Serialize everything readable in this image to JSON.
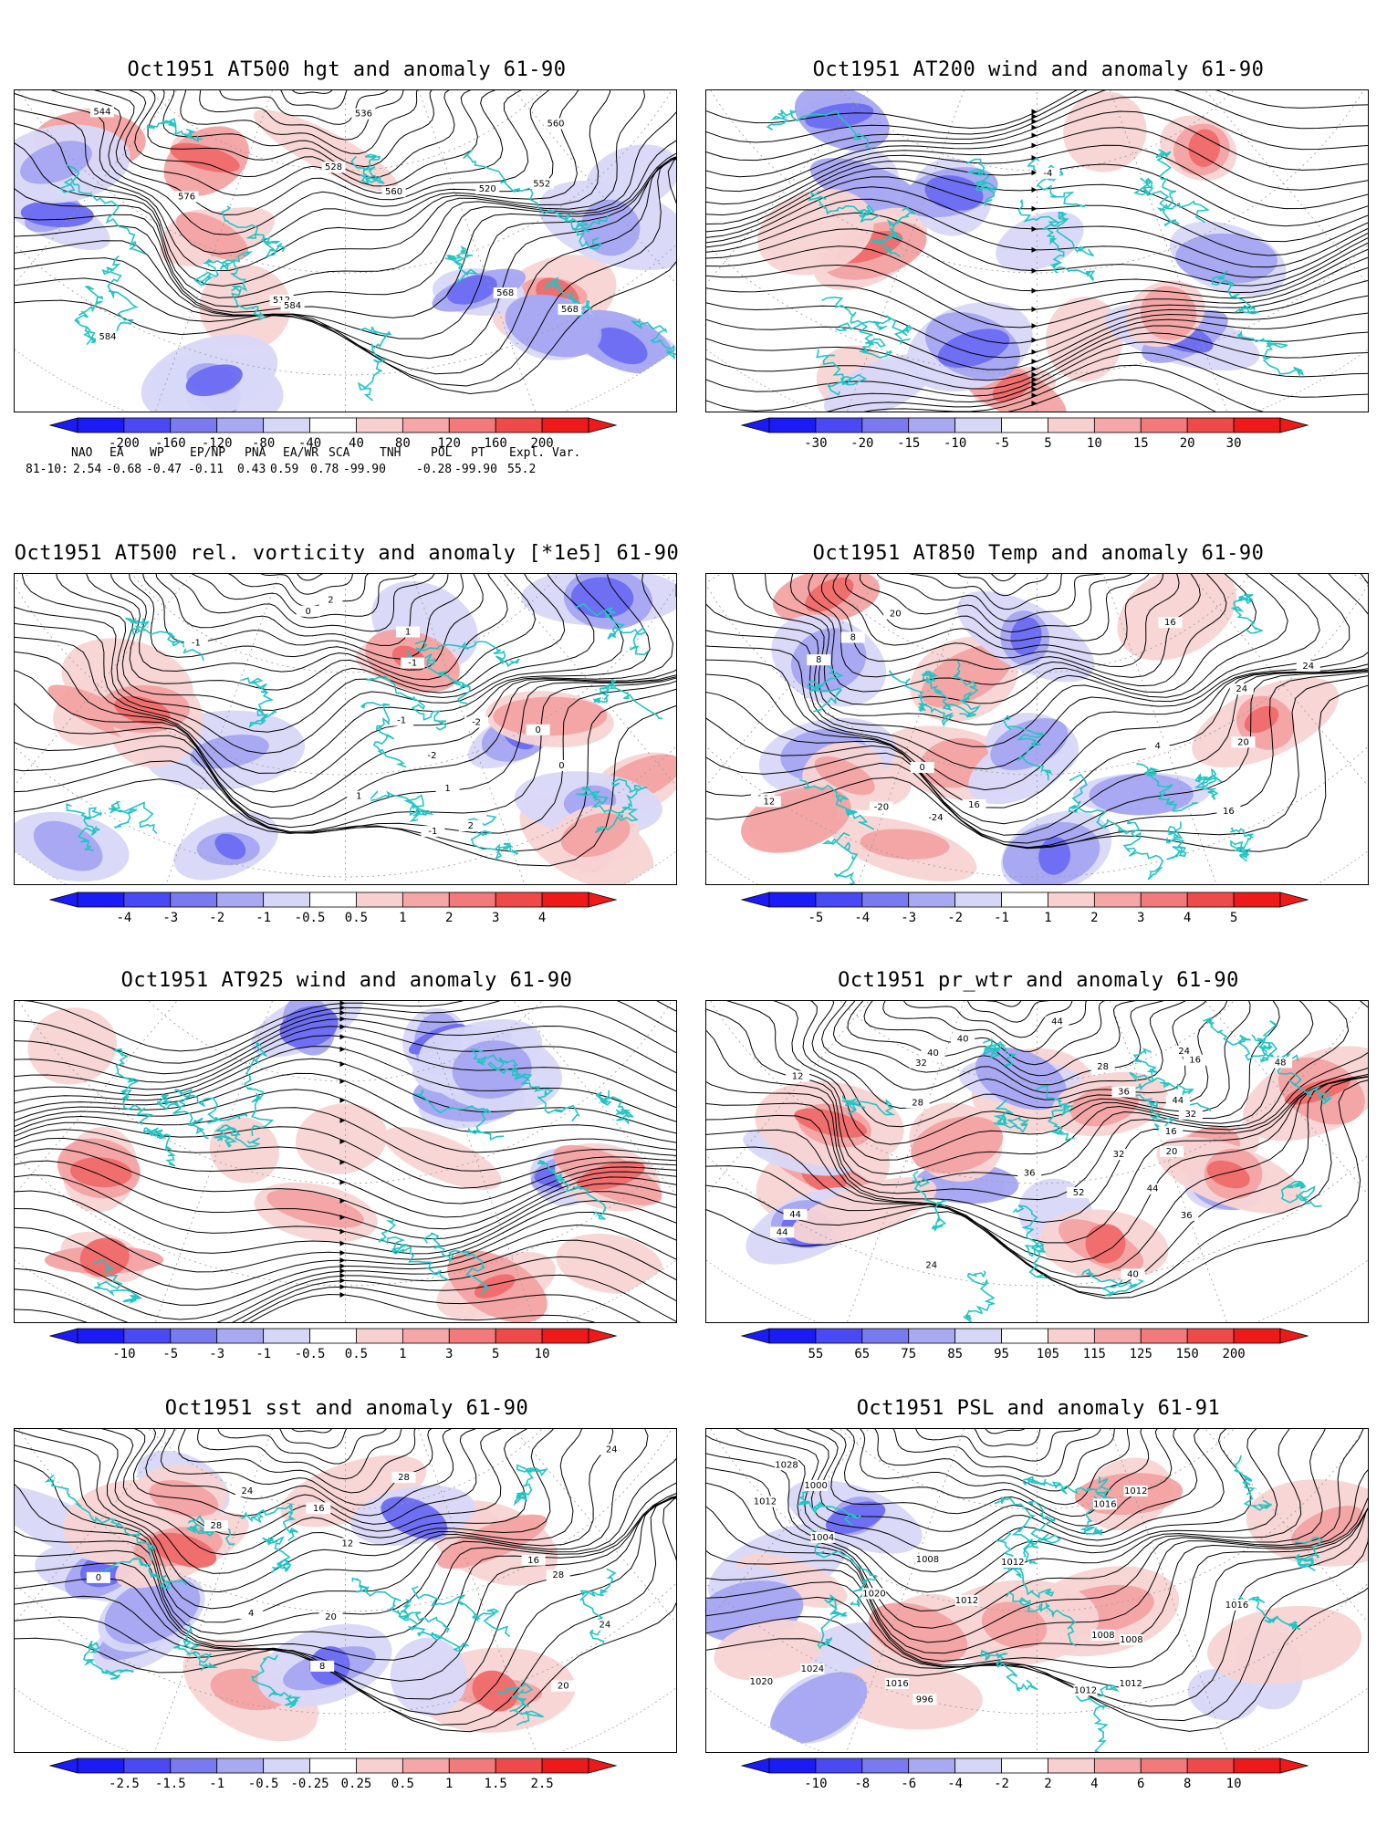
{
  "panels": [
    {
      "id": "p1",
      "title": "Oct1951 AT500 hgt and anomaly 61-90",
      "type": "contour",
      "colorbar": [
        "-200",
        "-160",
        "-120",
        "-80",
        "-40",
        "40",
        "80",
        "120",
        "160",
        "200"
      ],
      "contour_labels": [
        "512",
        "520",
        "528",
        "536",
        "544",
        "552",
        "560",
        "568",
        "560",
        "568",
        "576",
        "584",
        "584"
      ]
    },
    {
      "id": "p2",
      "title": "Oct1951 AT200 wind and anomaly 61-90",
      "type": "stream",
      "colorbar": [
        "-30",
        "-20",
        "-15",
        "-10",
        "-5",
        "5",
        "10",
        "15",
        "20",
        "30"
      ],
      "contour_labels": [
        "-4"
      ]
    },
    {
      "id": "p3",
      "title": "Oct1951 AT500 rel. vorticity and anomaly [*1e5] 61-90",
      "type": "contour",
      "colorbar": [
        "-4",
        "-3",
        "-2",
        "-1",
        "-0.5",
        "0.5",
        "1",
        "2",
        "3",
        "4"
      ],
      "contour_labels": [
        "0",
        "-1",
        "2",
        "-2",
        "1",
        "-1",
        "0",
        "-1",
        "1",
        "-2",
        "2",
        "0",
        "-1",
        "1"
      ]
    },
    {
      "id": "p4",
      "title": "Oct1951 AT850 Temp and anomaly 61-90",
      "type": "contour",
      "colorbar": [
        "-5",
        "-4",
        "-3",
        "-2",
        "-1",
        "1",
        "2",
        "3",
        "4",
        "5"
      ],
      "contour_labels": [
        "-20",
        "-24",
        "16",
        "8",
        "0",
        "4",
        "8",
        "24",
        "16",
        "12",
        "24",
        "20",
        "16",
        "16",
        "20"
      ]
    },
    {
      "id": "p5",
      "title": "Oct1951 AT925 wind and anomaly 61-90",
      "type": "stream",
      "colorbar": [
        "-10",
        "-5",
        "-3",
        "-1",
        "-0.5",
        "0.5",
        "1",
        "3",
        "5",
        "10"
      ],
      "contour_labels": []
    },
    {
      "id": "p6",
      "title": "Oct1951 pr_wtr and anomaly 61-90",
      "type": "contour",
      "colorbar": [
        "55",
        "65",
        "75",
        "85",
        "95",
        "105",
        "115",
        "125",
        "150",
        "200"
      ],
      "contour_labels": [
        "32",
        "28",
        "36",
        "44",
        "52",
        "40",
        "44",
        "12",
        "16",
        "24",
        "28",
        "32",
        "36",
        "24",
        "16",
        "20",
        "40",
        "44",
        "48",
        "44",
        "40",
        "32",
        "36",
        "44"
      ]
    },
    {
      "id": "p7",
      "title": "Oct1951 sst and anomaly 61-90",
      "type": "contour",
      "colorbar": [
        "-2.5",
        "-1.5",
        "-1",
        "-0.5",
        "-0.25",
        "0.25",
        "0.5",
        "1",
        "1.5",
        "2.5"
      ],
      "contour_labels": [
        "28",
        "24",
        "12",
        "8",
        "4",
        "0",
        "16",
        "12",
        "20",
        "24",
        "28",
        "28",
        "24",
        "20",
        "16"
      ]
    },
    {
      "id": "p8",
      "title": "Oct1951 PSL and anomaly 61-91",
      "type": "contour",
      "colorbar": [
        "-10",
        "-8",
        "-6",
        "-4",
        "-2",
        "2",
        "4",
        "6",
        "8",
        "10"
      ],
      "contour_labels": [
        "1016",
        "1016",
        "1012",
        "1020",
        "1024",
        "1028",
        "1008",
        "996",
        "1000",
        "1004",
        "1016",
        "1020",
        "1012",
        "1008",
        "1012",
        "1012",
        "1008",
        "1012",
        "1012"
      ]
    }
  ],
  "teleconnection": {
    "headers": [
      "NAO",
      "EA",
      "WP",
      "EP/NP",
      "PNA",
      "EA/WR",
      "SCA",
      "TNH",
      "POL",
      "PT",
      "Expl. Var."
    ],
    "row_label": "81-10:",
    "values": [
      "2.54",
      "-0.68",
      "-0.47",
      "-0.11",
      "0.43",
      "0.59",
      "0.78",
      "-99.90",
      "-0.28",
      "-99.90",
      "55.2"
    ]
  },
  "colors": {
    "coast": "#22c4c4",
    "neg_strong": "#2020ff",
    "pos_strong": "#ff2020"
  }
}
